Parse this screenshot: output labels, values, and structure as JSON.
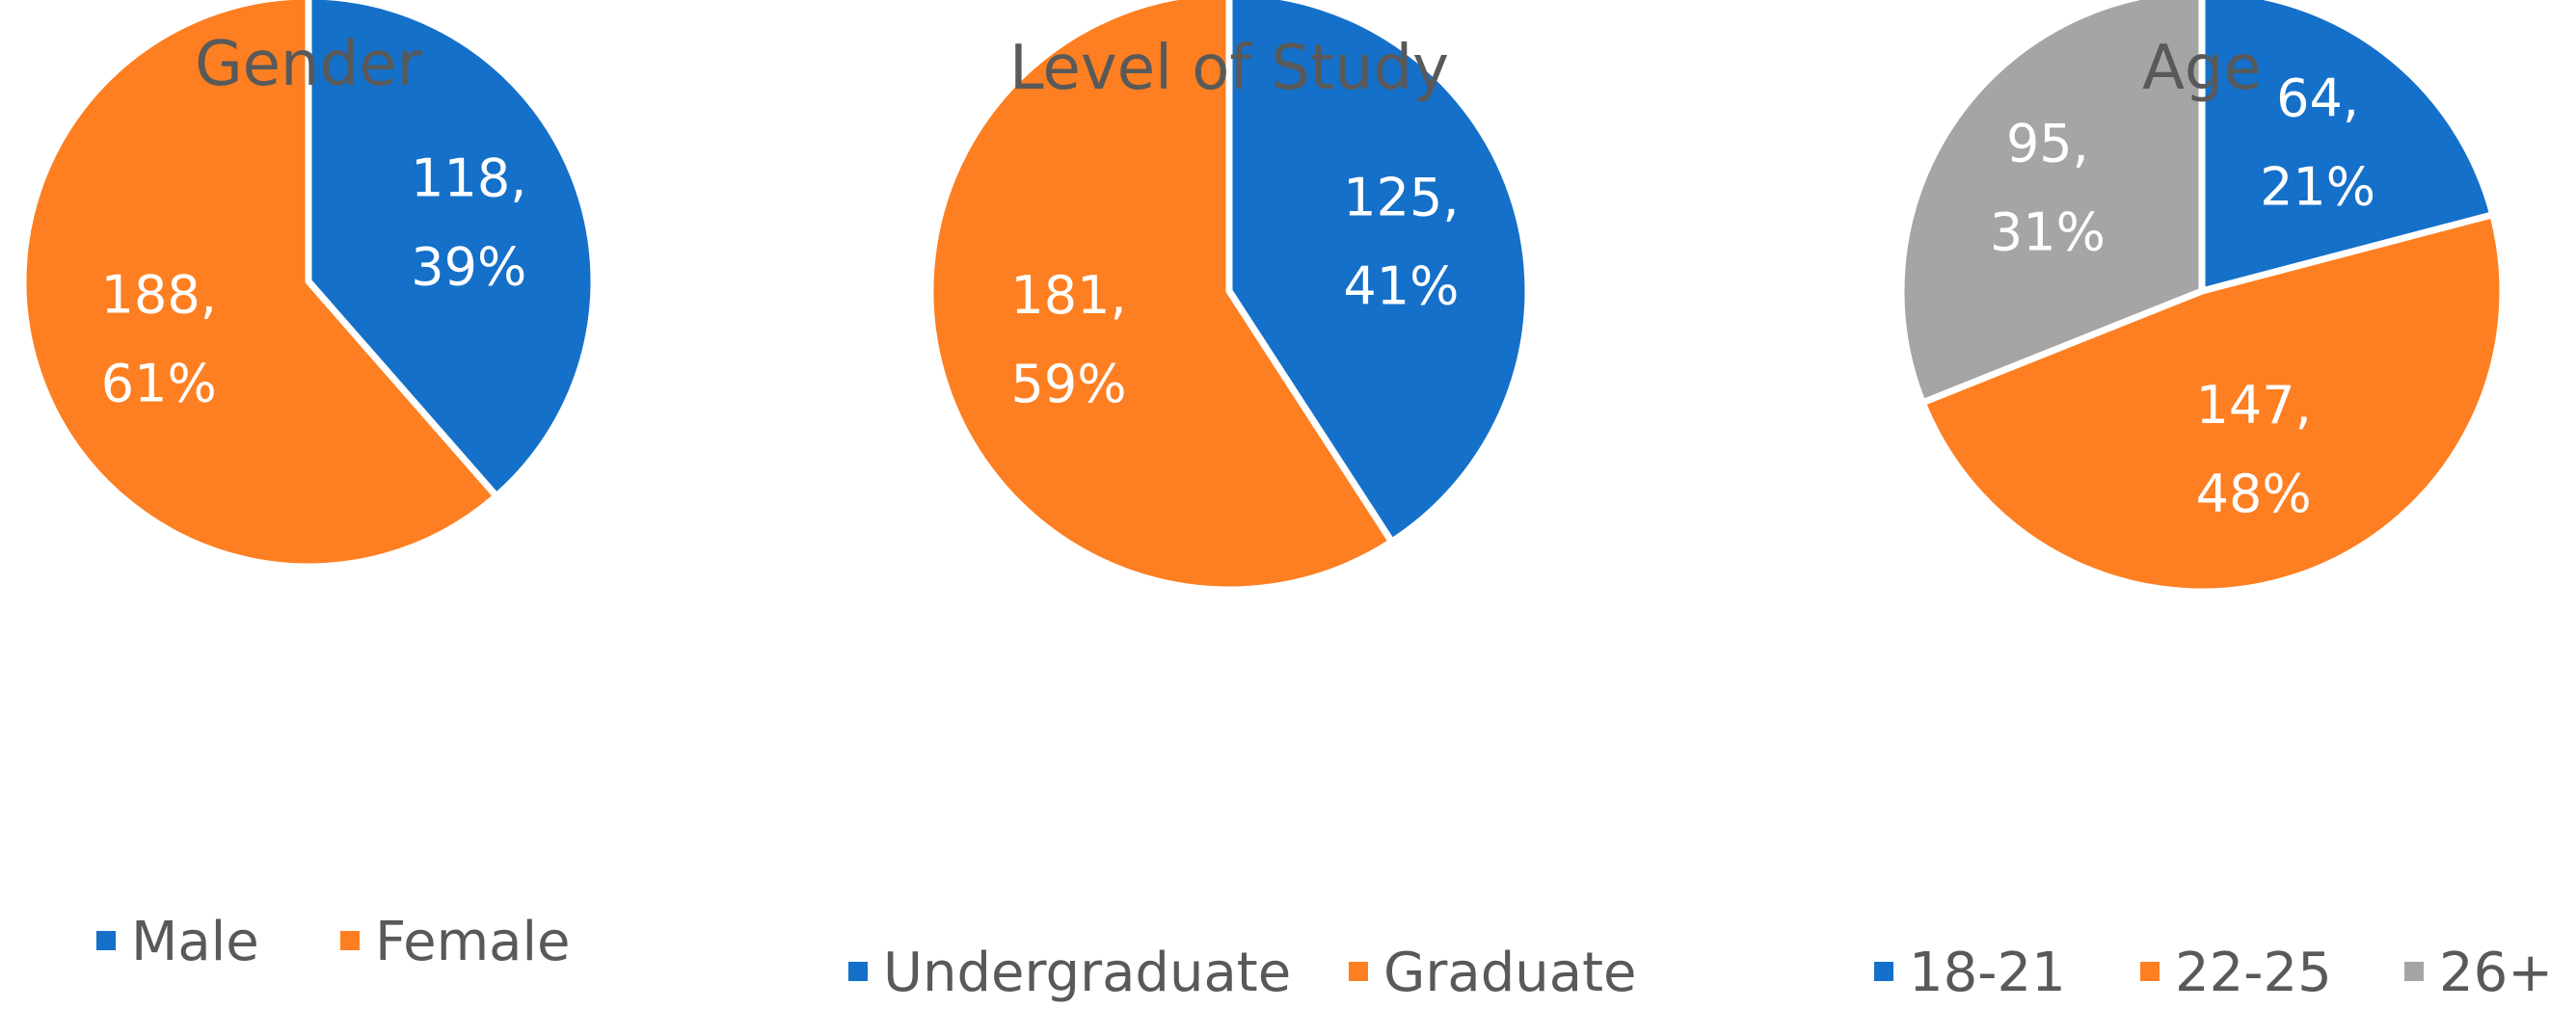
{
  "chart_data": [
    {
      "type": "pie",
      "title": "Gender",
      "categories": [
        "Male",
        "Female"
      ],
      "values": [
        118,
        188
      ],
      "percents": [
        "39%",
        "61%"
      ],
      "data_labels": [
        [
          "118,",
          "39%"
        ],
        [
          "188,",
          "61%"
        ]
      ],
      "colors": [
        "#1570C9",
        "#FD7F22"
      ],
      "legend": "bottom"
    },
    {
      "type": "pie",
      "title": "Level of Study",
      "categories": [
        "Undergraduate",
        "Graduate"
      ],
      "values": [
        125,
        181
      ],
      "percents": [
        "41%",
        "59%"
      ],
      "data_labels": [
        [
          "125,",
          "41%"
        ],
        [
          "181,",
          "59%"
        ]
      ],
      "colors": [
        "#1570C9",
        "#FD7F22"
      ],
      "legend": "bottom"
    },
    {
      "type": "pie",
      "title": "Age",
      "categories": [
        "18-21",
        "22-25",
        "26+"
      ],
      "values": [
        64,
        147,
        95
      ],
      "percents": [
        "21%",
        "48%",
        "31%"
      ],
      "data_labels": [
        [
          "64,",
          "21%"
        ],
        [
          "147,",
          "48%"
        ],
        [
          "95,",
          "31%"
        ]
      ],
      "colors": [
        "#1570C9",
        "#FD7F22",
        "#A5A5A5"
      ],
      "legend": "bottom"
    }
  ]
}
